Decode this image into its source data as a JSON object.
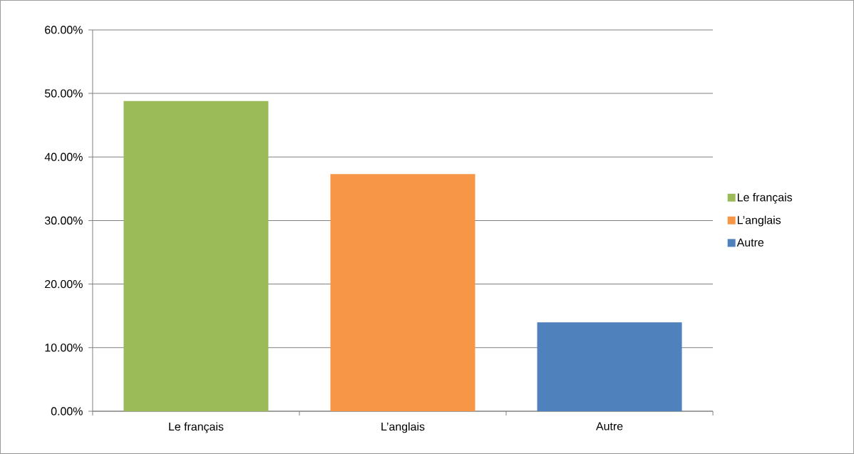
{
  "chart_data": {
    "type": "bar",
    "categories": [
      "Le français",
      "L’anglais",
      "Autre"
    ],
    "series": [
      {
        "name": "Le français",
        "color": "#9bbb59",
        "values": [
          48.8,
          null,
          null
        ]
      },
      {
        "name": "L’anglais",
        "color": "#f79646",
        "values": [
          null,
          37.3,
          null
        ]
      },
      {
        "name": "Autre",
        "color": "#4f81bd",
        "values": [
          null,
          null,
          14.0
        ]
      }
    ],
    "ylim": [
      0,
      60
    ],
    "yticks": [
      {
        "value": 0,
        "label": "0.00%"
      },
      {
        "value": 10,
        "label": "10.00%"
      },
      {
        "value": 20,
        "label": "20.00%"
      },
      {
        "value": 30,
        "label": "30.00%"
      },
      {
        "value": 40,
        "label": "40.00%"
      },
      {
        "value": 50,
        "label": "50.00%"
      },
      {
        "value": 60,
        "label": "60.00%"
      }
    ],
    "grid": "y",
    "legend": "right"
  }
}
